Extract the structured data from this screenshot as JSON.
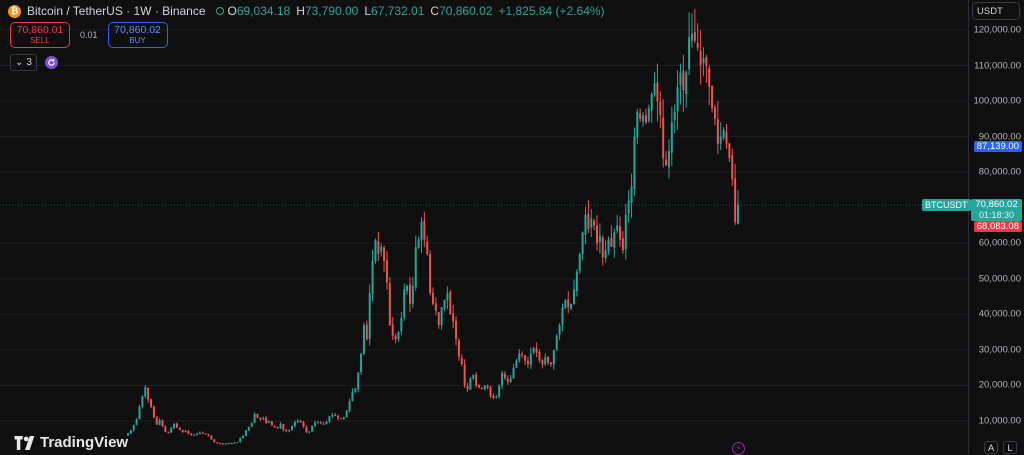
{
  "legend": {
    "symbol_icon": "bitcoin-icon",
    "title": "Bitcoin / TetherUS · 1W · Binance",
    "o_key": "O",
    "o_val": "69,034.18",
    "h_key": "H",
    "h_val": "73,790.00",
    "l_key": "L",
    "l_val": "67,732.01",
    "c_key": "C",
    "c_val": "70,860.02",
    "change": "+1,825.84 (+2.64%)"
  },
  "trade": {
    "sell_price": "70,860.01",
    "sell_label": "SELL",
    "spread": "0.01",
    "buy_price": "70,860.02",
    "buy_label": "BUY"
  },
  "indicators": {
    "collapse_label": "3"
  },
  "currency": "USDT",
  "price_axis": {
    "labels": [
      "120,000.00",
      "110,000.00",
      "100,000.00",
      "90,000.00",
      "80,000.00",
      "60,000.00",
      "50,000.00",
      "40,000.00",
      "30,000.00",
      "20,000.00",
      "10,000.00"
    ],
    "values": [
      120000,
      110000,
      100000,
      90000,
      80000,
      60000,
      50000,
      40000,
      30000,
      20000,
      10000
    ],
    "pre_tag": "87,139.00",
    "symbol_tag": "BTCUSDT",
    "current_price": "70,860.02",
    "countdown": "01:18:30",
    "low_tag": "68,083.08"
  },
  "scale_buttons": {
    "auto": "A",
    "log": "L"
  },
  "watermark": "TradingView",
  "colors": {
    "up": "#26a69a",
    "down": "#ef5350",
    "background": "#0f0f0f",
    "accent": "#2962ff"
  },
  "series": {
    "close": [
      6500,
      7400,
      8900,
      10500,
      14000,
      17000,
      19500,
      16000,
      14000,
      11000,
      9000,
      10200,
      8500,
      7000,
      6800,
      8000,
      9200,
      8100,
      7500,
      6900,
      7200,
      6400,
      6000,
      6200,
      6500,
      6700,
      6500,
      6300,
      5800,
      4800,
      4000,
      3800,
      3700,
      3400,
      3600,
      3800,
      3700,
      3900,
      4100,
      5200,
      5800,
      7300,
      8300,
      9500,
      12000,
      11000,
      10500,
      10800,
      9500,
      9900,
      8700,
      8200,
      8000,
      9200,
      7500,
      7200,
      7400,
      8600,
      9700,
      10000,
      9600,
      8400,
      6900,
      7000,
      8700,
      9500,
      9700,
      9300,
      9200,
      9800,
      11300,
      11700,
      11500,
      10800,
      10600,
      11000,
      12900,
      15600,
      18200,
      19100,
      23600,
      29000,
      37000,
      33000,
      46000,
      55000,
      61000,
      57000,
      59000,
      55000,
      49000,
      37000,
      34000,
      33000,
      35000,
      39000,
      47000,
      48000,
      43000,
      48000,
      59000,
      61000,
      66000,
      61000,
      57000,
      46000,
      43000,
      41000,
      37000,
      42000,
      44000,
      46000,
      40000,
      38000,
      33000,
      28000,
      26000,
      20000,
      19000,
      22000,
      23000,
      20000,
      19500,
      19000,
      20000,
      19300,
      17000,
      16500,
      16800,
      20000,
      23500,
      22000,
      21000,
      22000,
      25000,
      27000,
      29000,
      28500,
      27000,
      26000,
      29000,
      30500,
      29200,
      27000,
      26000,
      28000,
      26500,
      26000,
      30000,
      34000,
      37000,
      42000,
      44000,
      42000,
      43000,
      47000,
      52000,
      57000,
      63000,
      68000,
      64000,
      67000,
      65000,
      60000,
      62000,
      56000,
      58000,
      61000,
      59000,
      63000,
      65000,
      61000,
      58000,
      68000,
      72000,
      76000,
      90000,
      97000,
      95000,
      96000,
      94000,
      98000,
      102000,
      105000,
      100000,
      96000,
      84000,
      82000,
      86000,
      94000,
      97000,
      104000,
      108000,
      103000,
      108000,
      118000,
      119000,
      117000,
      115000,
      110000,
      112000,
      110000,
      104000,
      98000,
      95000,
      88000,
      90000,
      92000,
      88000,
      84000,
      78000,
      66000,
      70860
    ]
  }
}
